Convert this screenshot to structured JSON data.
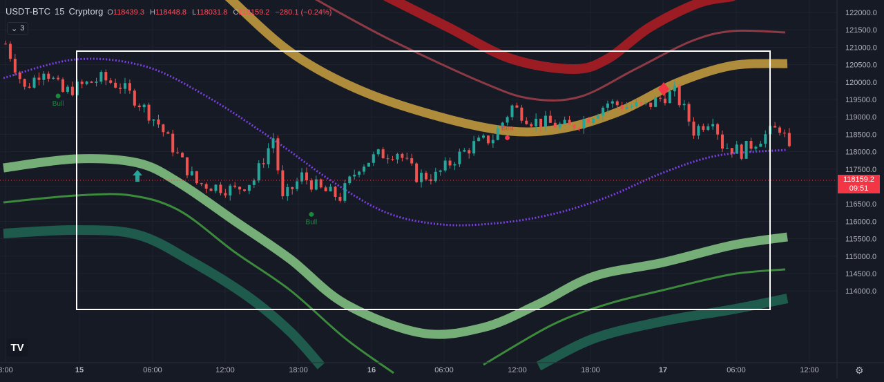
{
  "header": {
    "symbol": "USDT-BTC",
    "interval": "15",
    "exchange": "Cryptorg",
    "ohlc": {
      "o_key": "O",
      "o": "118439.3",
      "h_key": "H",
      "h": "118448.8",
      "l_key": "L",
      "l": "118031.8",
      "c_key": "C",
      "c": "118159.2",
      "change": "−280.1 (−0.24%)"
    },
    "indicators_count": "3"
  },
  "price_tag": {
    "price": "118159.2",
    "countdown": "09:51"
  },
  "logo_text": "TV",
  "icons": {
    "settings": "gear-icon",
    "collapse": "chevron-down-icon",
    "logo": "tradingview-logo-icon"
  },
  "colors": {
    "background": "#161a25",
    "bull_candle": "#26a69a",
    "bear_candle": "#ef5350",
    "purple_line": "#7b3fe4",
    "upper_band": "#c9a13f",
    "upper_red": "#9c1c24",
    "lower_green": "#7fbf7f",
    "lower_dark": "#1e5b4c",
    "last_price": "#f23645"
  },
  "chart_data": {
    "type": "candlestick",
    "y_axis": {
      "ticks": [
        "122000.0",
        "121500.0",
        "121000.0",
        "120500.0",
        "120000.0",
        "119500.0",
        "119000.0",
        "118500.0",
        "118000.0",
        "117500.0",
        "117000.0",
        "116500.0",
        "116000.0",
        "115500.0",
        "115000.0",
        "114500.0",
        "114000.0"
      ],
      "range": [
        113950,
        122150
      ]
    },
    "x_axis": {
      "ticks": [
        "8:00",
        "15",
        "06:00",
        "12:00",
        "18:00",
        "16",
        "06:00",
        "12:00",
        "18:00",
        "17",
        "06:00",
        "12:00"
      ],
      "bold_ticks": [
        "15",
        "16",
        "17"
      ]
    },
    "last_price": 118159.2,
    "candles_close_path": [
      {
        "t": 0,
        "c": 121100
      },
      {
        "t": 4,
        "c": 119800
      },
      {
        "t": 8,
        "c": 120400
      },
      {
        "t": 12,
        "c": 119700
      },
      {
        "t": 16,
        "c": 119900
      },
      {
        "t": 20,
        "c": 120100
      },
      {
        "t": 24,
        "c": 119900
      },
      {
        "t": 28,
        "c": 119400
      },
      {
        "t": 32,
        "c": 118800
      },
      {
        "t": 36,
        "c": 117900
      },
      {
        "t": 40,
        "c": 117100
      },
      {
        "t": 44,
        "c": 117000
      },
      {
        "t": 48,
        "c": 116900
      },
      {
        "t": 52,
        "c": 117200
      },
      {
        "t": 56,
        "c": 118400
      },
      {
        "t": 58,
        "c": 116600
      },
      {
        "t": 62,
        "c": 117300
      },
      {
        "t": 66,
        "c": 116900
      },
      {
        "t": 70,
        "c": 116700
      },
      {
        "t": 74,
        "c": 117600
      },
      {
        "t": 78,
        "c": 117900
      },
      {
        "t": 82,
        "c": 118000
      },
      {
        "t": 86,
        "c": 117300
      },
      {
        "t": 90,
        "c": 117300
      },
      {
        "t": 94,
        "c": 117800
      },
      {
        "t": 98,
        "c": 118200
      },
      {
        "t": 102,
        "c": 118400
      },
      {
        "t": 106,
        "c": 119300
      },
      {
        "t": 110,
        "c": 118900
      },
      {
        "t": 114,
        "c": 118800
      },
      {
        "t": 118,
        "c": 118700
      },
      {
        "t": 122,
        "c": 119000
      },
      {
        "t": 126,
        "c": 119400
      },
      {
        "t": 130,
        "c": 119300
      },
      {
        "t": 134,
        "c": 119300
      },
      {
        "t": 138,
        "c": 119600
      },
      {
        "t": 140,
        "c": 119700
      },
      {
        "t": 142,
        "c": 119200
      },
      {
        "t": 144,
        "c": 118600
      },
      {
        "t": 148,
        "c": 119000
      },
      {
        "t": 150,
        "c": 118200
      },
      {
        "t": 154,
        "c": 118000
      },
      {
        "t": 158,
        "c": 118400
      },
      {
        "t": 162,
        "c": 118700
      },
      {
        "t": 164,
        "c": 118159.2
      }
    ],
    "signals": [
      {
        "label": "Bull",
        "t": 11,
        "price": 119600
      },
      {
        "label": "Bull",
        "t": 64,
        "price": 116200
      },
      {
        "label": "Bea",
        "t": 105,
        "price": 118400
      }
    ]
  }
}
